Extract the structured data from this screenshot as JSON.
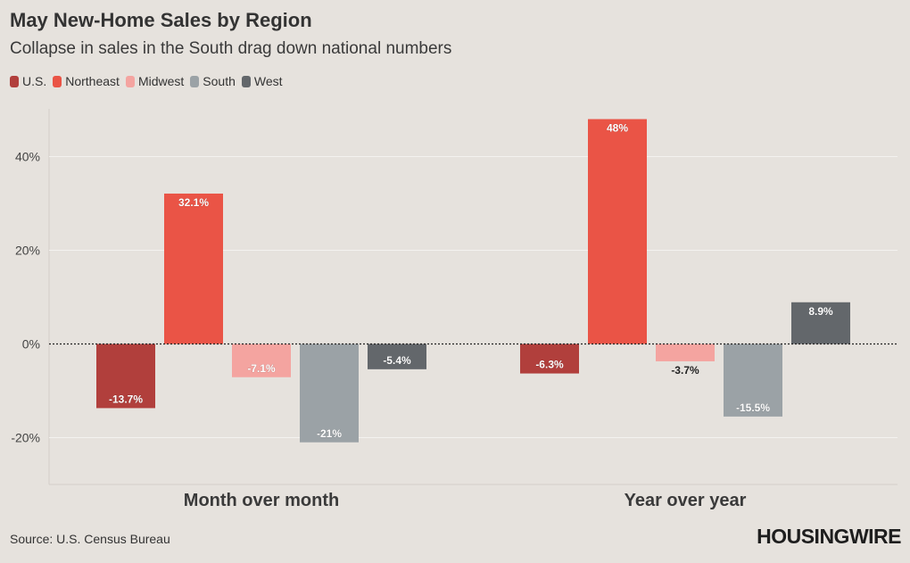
{
  "title": "May New-Home Sales by Region",
  "subtitle": "Collapse in sales in the South drag down national numbers",
  "source": "Source: U.S. Census Bureau",
  "logo_text": "HOUSINGWIRE",
  "chart_data": {
    "type": "bar",
    "categories": [
      "Month over month",
      "Year over year"
    ],
    "series": [
      {
        "name": "U.S.",
        "color": "#b13f3c",
        "values": [
          -13.7,
          -6.3
        ],
        "labels": [
          "-13.7%",
          "-6.3%"
        ]
      },
      {
        "name": "Northeast",
        "color": "#ea5446",
        "values": [
          32.1,
          48
        ],
        "labels": [
          "32.1%",
          "48%"
        ]
      },
      {
        "name": "Midwest",
        "color": "#f4a4a0",
        "values": [
          -7.1,
          -3.7
        ],
        "labels": [
          "-7.1%",
          "-3.7%"
        ]
      },
      {
        "name": "South",
        "color": "#9ba2a6",
        "values": [
          -21,
          -15.5
        ],
        "labels": [
          "-21%",
          "-15.5%"
        ]
      },
      {
        "name": "West",
        "color": "#63676b",
        "values": [
          -5.4,
          8.9
        ],
        "labels": [
          "-5.4%",
          "8.9%"
        ]
      }
    ],
    "yticks": [
      -20,
      0,
      20,
      40
    ],
    "ytick_labels": [
      "-20%",
      "0%",
      "20%",
      "40%"
    ],
    "ylim": [
      -30,
      50
    ],
    "grid": true,
    "legend_position": "top-left"
  }
}
